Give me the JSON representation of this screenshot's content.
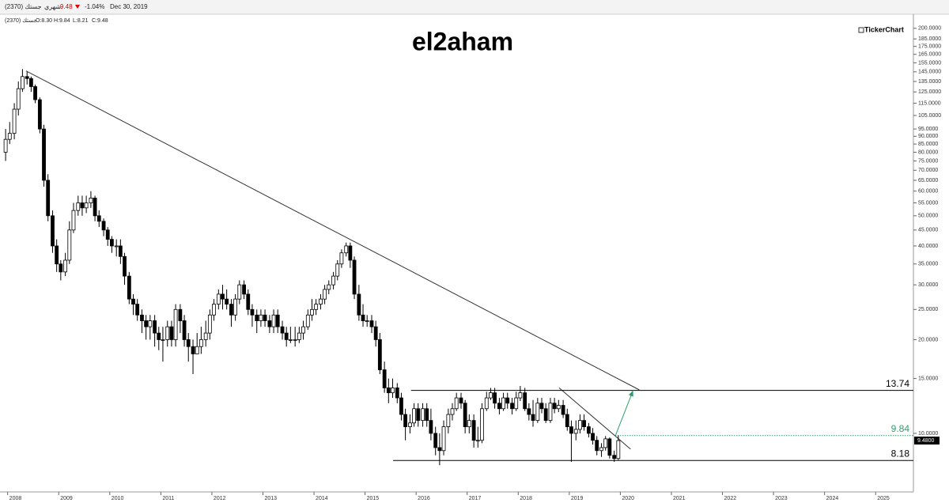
{
  "chart_data": {
    "type": "candlestick",
    "title": "el2aham",
    "brand": "TickerChart",
    "header": {
      "symbol": "جستك (2370)",
      "period": "شهري",
      "last": "9.48",
      "change": "-1.04%",
      "date": "Dec 30, 2019",
      "ohlc_symbol": "جستك (2370)",
      "open": "O:8.30",
      "high": "H:9.84",
      "low": "L:8.21",
      "close": "C:9.48"
    },
    "y_scale": "log",
    "ylim": [
      6.56,
      222
    ],
    "xlim": [
      2007.85,
      2025.74
    ],
    "yticks": [
      {
        "value": 200,
        "label": "200.0000"
      },
      {
        "value": 185,
        "label": "185.0000"
      },
      {
        "value": 175,
        "label": "175.0000"
      },
      {
        "value": 165,
        "label": "165.0000"
      },
      {
        "value": 155,
        "label": "155.0000"
      },
      {
        "value": 145,
        "label": "145.0000"
      },
      {
        "value": 135,
        "label": "135.0000"
      },
      {
        "value": 125,
        "label": "125.0000"
      },
      {
        "value": 115,
        "label": "115.0000"
      },
      {
        "value": 105,
        "label": "105.0000"
      },
      {
        "value": 95,
        "label": "95.0000"
      },
      {
        "value": 90,
        "label": "90.0000"
      },
      {
        "value": 85,
        "label": "85.0000"
      },
      {
        "value": 80,
        "label": "80.0000"
      },
      {
        "value": 75,
        "label": "75.0000"
      },
      {
        "value": 70,
        "label": "70.0000"
      },
      {
        "value": 65,
        "label": "65.0000"
      },
      {
        "value": 60,
        "label": "60.0000"
      },
      {
        "value": 55,
        "label": "55.0000"
      },
      {
        "value": 50,
        "label": "50.0000"
      },
      {
        "value": 45,
        "label": "45.0000"
      },
      {
        "value": 40,
        "label": "40.0000"
      },
      {
        "value": 35,
        "label": "35.0000"
      },
      {
        "value": 30,
        "label": "30.0000"
      },
      {
        "value": 25,
        "label": "25.0000"
      },
      {
        "value": 20,
        "label": "20.0000"
      },
      {
        "value": 15,
        "label": "15.0000"
      },
      {
        "value": 10,
        "label": "10.0000"
      }
    ],
    "xticks": [
      2008,
      2009,
      2010,
      2011,
      2012,
      2013,
      2014,
      2015,
      2016,
      2017,
      2018,
      2019,
      2020,
      2021,
      2022,
      2023,
      2024,
      2025
    ],
    "price_tag": {
      "value": 9.48,
      "label": "9.4800"
    },
    "up_color": "#ffffff",
    "down_color": "#000000",
    "x": [
      2007.96,
      2008.04,
      2008.13,
      2008.21,
      2008.29,
      2008.38,
      2008.46,
      2008.54,
      2008.63,
      2008.71,
      2008.79,
      2008.88,
      2008.96,
      2009.04,
      2009.13,
      2009.21,
      2009.29,
      2009.38,
      2009.46,
      2009.54,
      2009.63,
      2009.71,
      2009.79,
      2009.88,
      2009.96,
      2010.04,
      2010.13,
      2010.21,
      2010.29,
      2010.38,
      2010.46,
      2010.54,
      2010.63,
      2010.71,
      2010.79,
      2010.88,
      2010.96,
      2011.04,
      2011.13,
      2011.21,
      2011.29,
      2011.38,
      2011.46,
      2011.54,
      2011.63,
      2011.71,
      2011.79,
      2011.88,
      2011.96,
      2012.04,
      2012.13,
      2012.21,
      2012.29,
      2012.38,
      2012.46,
      2012.54,
      2012.63,
      2012.71,
      2012.79,
      2012.88,
      2012.96,
      2013.04,
      2013.13,
      2013.21,
      2013.29,
      2013.38,
      2013.46,
      2013.54,
      2013.63,
      2013.71,
      2013.79,
      2013.88,
      2013.96,
      2014.04,
      2014.13,
      2014.21,
      2014.29,
      2014.38,
      2014.46,
      2014.54,
      2014.63,
      2014.71,
      2014.79,
      2014.88,
      2014.96,
      2015.04,
      2015.13,
      2015.21,
      2015.29,
      2015.38,
      2015.46,
      2015.54,
      2015.63,
      2015.71,
      2015.79,
      2015.88,
      2015.96,
      2016.04,
      2016.13,
      2016.21,
      2016.29,
      2016.38,
      2016.46,
      2016.54,
      2016.63,
      2016.71,
      2016.79,
      2016.88,
      2016.96,
      2017.04,
      2017.13,
      2017.21,
      2017.29,
      2017.38,
      2017.46,
      2017.54,
      2017.63,
      2017.71,
      2017.79,
      2017.88,
      2017.96,
      2018.04,
      2018.13,
      2018.21,
      2018.29,
      2018.38,
      2018.46,
      2018.54,
      2018.63,
      2018.71,
      2018.79,
      2018.88,
      2018.96,
      2019.04,
      2019.13,
      2019.21,
      2019.29,
      2019.38,
      2019.46,
      2019.54,
      2019.63,
      2019.71,
      2019.79,
      2019.88,
      2019.96
    ],
    "open": [
      80,
      88,
      92,
      110,
      128,
      140,
      138,
      130,
      118,
      95,
      65,
      50,
      40,
      35,
      33,
      36,
      45,
      52,
      55,
      53,
      55,
      57,
      50,
      48,
      45,
      42,
      40,
      40,
      37,
      32,
      27,
      26,
      24,
      23,
      22,
      23,
      21,
      20,
      20,
      22,
      20,
      25,
      23,
      20,
      19,
      18,
      19,
      20,
      21,
      24,
      26,
      28,
      27,
      26,
      24,
      27,
      30,
      28,
      25,
      24,
      23,
      24,
      23,
      22,
      24,
      22,
      21,
      20,
      20,
      20,
      21,
      22,
      24,
      25,
      26,
      27,
      29,
      30,
      32,
      35,
      38,
      40,
      36,
      28,
      24,
      23,
      23,
      22,
      20,
      16,
      14,
      13.5,
      14,
      13,
      11.5,
      10.5,
      10.8,
      12,
      11,
      12,
      11,
      10,
      9,
      8.8,
      10.5,
      11.5,
      12,
      13,
      12.5,
      10.5,
      11,
      9.5,
      9.5,
      12,
      13,
      13.5,
      12.5,
      12,
      13,
      12.5,
      12,
      13,
      13.5,
      12,
      11.5,
      11,
      12.5,
      12,
      11,
      12.5,
      12,
      12.3,
      11.5,
      10.5,
      10,
      10.3,
      11,
      10.5,
      10,
      9.5,
      8.8,
      9,
      9.6,
      8.5,
      8.3
    ],
    "high": [
      95,
      100,
      115,
      135,
      148,
      145,
      140,
      132,
      120,
      98,
      68,
      52,
      42,
      36,
      38,
      48,
      55,
      58,
      58,
      58,
      60,
      58,
      52,
      49,
      46,
      43,
      42,
      42,
      38,
      33,
      28,
      27,
      25,
      24,
      24,
      24,
      22,
      22,
      23,
      23,
      26,
      26,
      24,
      21,
      20,
      21,
      22,
      23,
      25,
      27,
      29,
      30,
      29,
      27,
      28,
      31,
      31,
      29,
      26,
      25,
      25,
      25,
      24,
      25,
      25,
      23,
      22,
      22,
      22,
      22,
      23,
      25,
      27,
      27,
      28,
      30,
      31,
      33,
      36,
      39,
      41,
      41,
      37,
      30,
      26,
      24,
      24,
      23,
      21,
      17,
      15,
      15,
      14.5,
      13.5,
      12,
      11.5,
      12.5,
      12.5,
      12.5,
      12.5,
      12,
      10.5,
      10,
      11,
      12,
      12.5,
      13.5,
      13.5,
      12.8,
      11.5,
      11.5,
      10.5,
      12.5,
      13.6,
      14,
      14,
      13,
      13.5,
      13.5,
      13,
      13.6,
      14.2,
      14,
      12.5,
      12.8,
      13,
      13,
      12.5,
      13,
      13,
      12.8,
      12.8,
      12,
      11,
      11,
      11.5,
      11.5,
      10.8,
      10.4,
      9.8,
      9.3,
      9.8,
      9.7,
      8.8,
      9.84
    ],
    "low": [
      75,
      85,
      88,
      105,
      125,
      132,
      125,
      115,
      92,
      62,
      48,
      38,
      33,
      31,
      32,
      35,
      44,
      50,
      50,
      51,
      53,
      48,
      46,
      43,
      40,
      38,
      37,
      35,
      30,
      26,
      24,
      23,
      21,
      20,
      20,
      19,
      18.5,
      17,
      19,
      19,
      19,
      21,
      19,
      17,
      15.5,
      18,
      18,
      19,
      20,
      23,
      25,
      25,
      25,
      22,
      23,
      26,
      27,
      24,
      22,
      21,
      22,
      22,
      21,
      21,
      21,
      20,
      19,
      19.5,
      19,
      19.5,
      20,
      21.5,
      23,
      24,
      25,
      26,
      28,
      29,
      31,
      34,
      37,
      34,
      27,
      23,
      22,
      22,
      21,
      19,
      15.5,
      13.5,
      12.5,
      13,
      12.5,
      11,
      9.5,
      10,
      10.5,
      10.5,
      10.5,
      10.5,
      9.5,
      8.5,
      7.9,
      8.5,
      10,
      11,
      11.8,
      12,
      10,
      10,
      9,
      9,
      9.3,
      11.8,
      12.8,
      12,
      11.5,
      11.8,
      12,
      11.5,
      11.8,
      12.7,
      11.8,
      11,
      10.5,
      10.8,
      11.6,
      10.8,
      10.8,
      11.6,
      11.7,
      11.2,
      10.2,
      8.1,
      9.5,
      10,
      10.2,
      9.7,
      9.2,
      8.5,
      8.4,
      8.8,
      8.3,
      8.1,
      8.21
    ],
    "close": [
      88,
      92,
      110,
      128,
      140,
      138,
      130,
      118,
      95,
      65,
      50,
      40,
      35,
      33,
      36,
      45,
      52,
      55,
      53,
      55,
      57,
      50,
      48,
      45,
      42,
      40,
      40,
      37,
      32,
      27,
      26,
      24,
      23,
      22,
      23,
      21,
      20,
      20,
      22,
      20,
      25,
      23,
      20,
      19,
      18,
      19,
      20,
      21,
      24,
      26,
      28,
      27,
      26,
      24,
      27,
      30,
      28,
      25,
      24,
      23,
      24,
      23,
      22,
      24,
      22,
      21,
      20,
      20,
      20,
      21,
      22,
      24,
      25,
      26,
      27,
      29,
      30,
      32,
      35,
      38,
      40,
      36,
      28,
      24,
      23,
      23,
      22,
      20,
      16,
      14,
      13.5,
      14,
      13,
      11.5,
      10.5,
      10.8,
      12,
      11,
      12,
      11,
      10,
      9,
      8.8,
      10.5,
      11.5,
      12,
      13,
      12.5,
      10.5,
      11,
      9.5,
      9.5,
      12,
      13,
      13.5,
      12.5,
      12,
      13,
      12.5,
      12,
      13,
      13.5,
      12,
      11.5,
      11,
      12.5,
      12,
      11,
      12.5,
      12,
      12.3,
      11.5,
      10.5,
      10,
      10.3,
      11,
      10.5,
      10,
      9.5,
      8.8,
      9,
      9.6,
      8.5,
      8.3,
      9.48
    ],
    "trendlines": [
      {
        "x": [
          2008.36,
          2020.37
        ],
        "y": [
          146,
          13.8
        ],
        "color": "#333333"
      },
      {
        "x": [
          2018.8,
          2020.2
        ],
        "y": [
          14,
          8.9
        ],
        "color": "#333333"
      }
    ],
    "levels": [
      {
        "y": 13.74,
        "x_start": 2015.9,
        "color": "#000000",
        "style": "solid"
      },
      {
        "y": 9.84,
        "x_start": 2019.9,
        "color": "#2e9e6e",
        "style": "dotted"
      },
      {
        "y": 8.18,
        "x_start": 2015.55,
        "color": "#000000",
        "style": "solid"
      }
    ],
    "arrow": {
      "x": [
        2019.9,
        2020.25
      ],
      "y": [
        9.8,
        13.74
      ],
      "color": "#2e9e6e"
    }
  }
}
